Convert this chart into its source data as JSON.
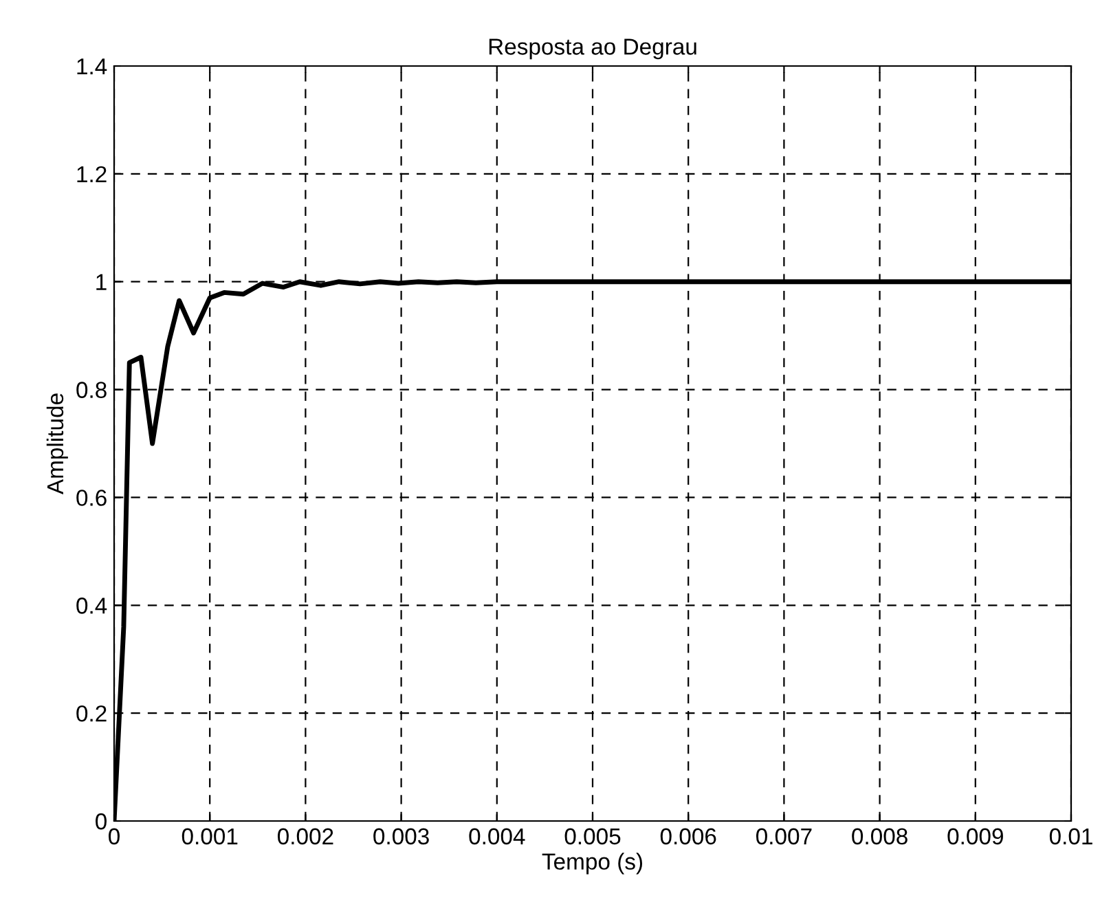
{
  "chart_data": {
    "type": "line",
    "title": "Resposta ao Degrau",
    "xlabel": "Tempo (s)",
    "ylabel": "Amplitude",
    "series": [
      {
        "color": "#000000",
        "x": [
          0,
          0.0001,
          0.00016,
          0.00028,
          0.0004,
          0.00056,
          0.00068,
          0.00083,
          0.001,
          0.00115,
          0.00135,
          0.00155,
          0.00177,
          0.00194,
          0.00216,
          0.00235,
          0.00257,
          0.00278,
          0.00297,
          0.00318,
          0.00338,
          0.00358,
          0.00378,
          0.004,
          0.01
        ],
        "values": [
          0,
          0.36,
          0.85,
          0.86,
          0.7,
          0.88,
          0.965,
          0.905,
          0.97,
          0.98,
          0.977,
          0.997,
          0.99,
          1.0,
          0.993,
          1.0,
          0.996,
          1.0,
          0.997,
          1.0,
          0.998,
          1.0,
          0.998,
          1.0,
          1.0
        ]
      }
    ],
    "xlim": [
      0,
      0.01
    ],
    "ylim": [
      0,
      1.4
    ],
    "xticks": [
      0,
      0.001,
      0.002,
      0.003,
      0.004,
      0.005,
      0.006,
      0.007,
      0.008,
      0.009,
      0.01
    ],
    "yticks": [
      0,
      0.2,
      0.4,
      0.6,
      0.8,
      1,
      1.2,
      1.4
    ],
    "grid": true,
    "legend": false,
    "marker": "none",
    "line_style": "solid"
  }
}
